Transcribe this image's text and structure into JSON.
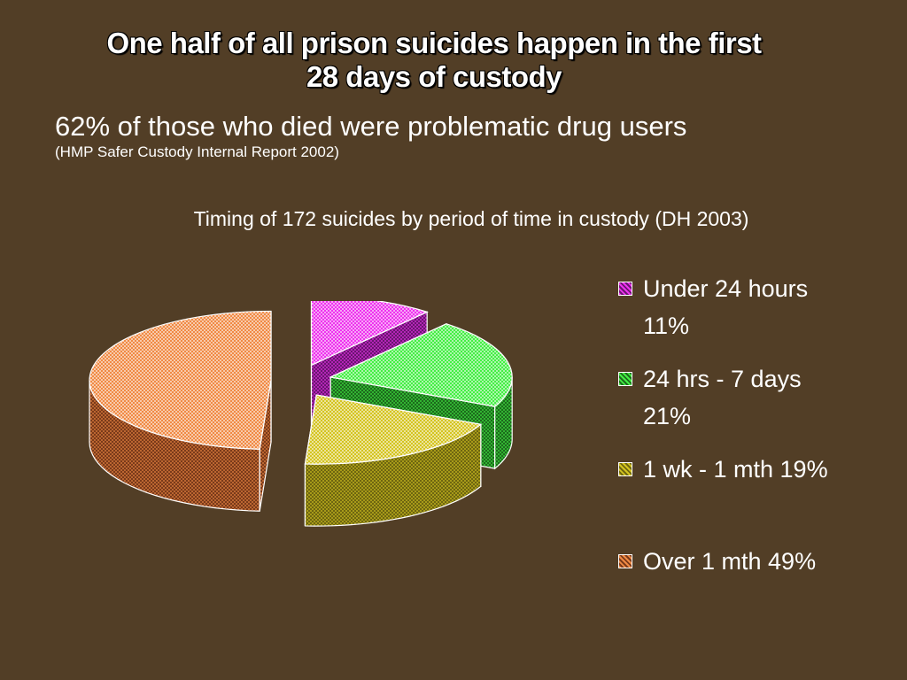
{
  "slide": {
    "title_line1": "One half of all prison suicides happen in the first",
    "title_line2": "28 days of custody",
    "subtitle": "62% of those who died were problematic drug users",
    "source": "(HMP Safer Custody Internal Report 2002)"
  },
  "chart_data": {
    "type": "pie",
    "title": "Timing of 172 suicides by period of time in custody (DH 2003)",
    "legend_position": "right",
    "exploded": true,
    "three_d": true,
    "slices": [
      {
        "name": "Under 24 hours",
        "label_line1": "Under 24 hours",
        "label_line2": "11%",
        "value": 11,
        "color": "#ee33ee",
        "dark": "#6a1570"
      },
      {
        "name": "24 hrs - 7 days",
        "label_line1": "24 hrs - 7 days",
        "label_line2": "21%",
        "value": 21,
        "color": "#44ee44",
        "dark": "#1c6a1c"
      },
      {
        "name": "1 wk - 1 mth",
        "label_line1": "1 wk - 1 mth 19%",
        "label_line2": "",
        "value": 19,
        "color": "#d4c420",
        "dark": "#6e6610"
      },
      {
        "name": "Over 1 mth",
        "label_line1": "Over 1 mth   49%",
        "label_line2": "",
        "value": 49,
        "color": "#f08a44",
        "dark": "#7a3a1a"
      }
    ]
  }
}
